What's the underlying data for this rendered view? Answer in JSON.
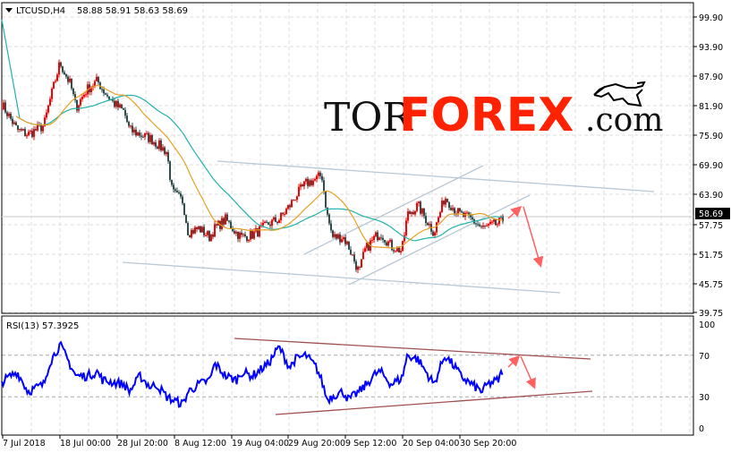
{
  "header": {
    "symbol": "LTCUSD,H4",
    "ohlc": "58.88 58.91 58.63 58.69"
  },
  "logo": {
    "part1": "TOR",
    "part2": "FOREX",
    "part3": ".com"
  },
  "colors": {
    "bull_candle": "#ff0000",
    "bear_candle": "#2f4f4f",
    "ma_fast": "#e6a020",
    "ma_slow": "#20b2aa",
    "rsi_line": "#0000ff",
    "channel_lines": "#b0c4d4",
    "rsi_trend_lines": "#a05050",
    "arrows": "#ff6060",
    "logo_red": "#ff2200"
  },
  "chart_data": [
    {
      "type": "candlestick",
      "title": "LTCUSD,H4",
      "ylim": [
        39.75,
        99.9
      ],
      "y_ticks": [
        "99.90",
        "93.90",
        "87.90",
        "81.90",
        "75.90",
        "69.90",
        "63.90",
        "57.75",
        "51.75",
        "45.75",
        "39.75"
      ],
      "current_price": "58.69",
      "x_ticks": [
        "7 Jul 2018",
        "18 Jul 00:00",
        "28 Jul 20:00",
        "8 Aug 12:00",
        "19 Aug 04:00",
        "29 Aug 20:00",
        "9 Sep 12:00",
        "20 Sep 04:00",
        "30 Sep 20:00"
      ],
      "grid": true,
      "indicators": [
        "moving average (fast)",
        "moving average (slow)"
      ],
      "points": [
        [
          "2018-07-07",
          82.4
        ],
        [
          "2018-07-10",
          76.9
        ],
        [
          "2018-07-12",
          76.0
        ],
        [
          "2018-07-15",
          77.8
        ],
        [
          "2018-07-16",
          82.4
        ],
        [
          "2018-07-18",
          90.6
        ],
        [
          "2018-07-20",
          86.0
        ],
        [
          "2018-07-21",
          81.5
        ],
        [
          "2018-07-23",
          85.1
        ],
        [
          "2018-07-25",
          86.9
        ],
        [
          "2018-07-26",
          85.1
        ],
        [
          "2018-07-28",
          82.4
        ],
        [
          "2018-07-30",
          80.6
        ],
        [
          "2018-07-31",
          76.9
        ],
        [
          "2018-08-02",
          76.0
        ],
        [
          "2018-08-04",
          75.1
        ],
        [
          "2018-08-05",
          74.2
        ],
        [
          "2018-08-07",
          72.4
        ],
        [
          "2018-08-08",
          64.2
        ],
        [
          "2018-08-10",
          62.4
        ],
        [
          "2018-08-11",
          56.0
        ],
        [
          "2018-08-13",
          56.9
        ],
        [
          "2018-08-15",
          55.1
        ],
        [
          "2018-08-16",
          56.9
        ],
        [
          "2018-08-18",
          58.7
        ],
        [
          "2018-08-20",
          56.0
        ],
        [
          "2018-08-21",
          55.1
        ],
        [
          "2018-08-23",
          55.6
        ],
        [
          "2018-08-25",
          56.9
        ],
        [
          "2018-08-26",
          57.8
        ],
        [
          "2018-08-28",
          58.7
        ],
        [
          "2018-08-30",
          61.5
        ],
        [
          "2018-08-31",
          63.3
        ],
        [
          "2018-09-02",
          66.0
        ],
        [
          "2018-09-04",
          66.9
        ],
        [
          "2018-09-05",
          67.8
        ],
        [
          "2018-09-06",
          59.6
        ],
        [
          "2018-09-07",
          55.1
        ],
        [
          "2018-09-09",
          55.1
        ],
        [
          "2018-09-10",
          53.2
        ],
        [
          "2018-09-12",
          47.8
        ],
        [
          "2018-09-13",
          52.3
        ],
        [
          "2018-09-15",
          55.1
        ],
        [
          "2018-09-16",
          56.0
        ],
        [
          "2018-09-18",
          53.2
        ],
        [
          "2018-09-20",
          52.3
        ],
        [
          "2018-09-21",
          59.6
        ],
        [
          "2018-09-23",
          61.5
        ],
        [
          "2018-09-25",
          57.8
        ],
        [
          "2018-09-26",
          56.0
        ],
        [
          "2018-09-28",
          63.3
        ],
        [
          "2018-09-30",
          60.5
        ],
        [
          "2018-10-01",
          59.6
        ],
        [
          "2018-10-03",
          58.7
        ],
        [
          "2018-10-05",
          56.9
        ],
        [
          "2018-10-06",
          57.2
        ],
        [
          "2018-10-08",
          57.8
        ],
        [
          "2018-10-09",
          58.69
        ]
      ]
    },
    {
      "type": "line",
      "title": "RSI(13) 57.3925",
      "label": "RSI(13)",
      "value": "57.3925",
      "ylim": [
        0,
        100
      ],
      "y_ticks": [
        "100",
        "70",
        "30",
        "0"
      ],
      "levels": [
        70,
        30
      ],
      "values": [
        44,
        54,
        35,
        42,
        62,
        80,
        60,
        50,
        50,
        54,
        46,
        44,
        42,
        35,
        50,
        39,
        42,
        30,
        27,
        23,
        35,
        42,
        46,
        62,
        50,
        46,
        54,
        50,
        58,
        62,
        78,
        58,
        66,
        70,
        58,
        45,
        27,
        31,
        35,
        27,
        35,
        40,
        52,
        54,
        42,
        48,
        70,
        66,
        50,
        42,
        70,
        58,
        50,
        42,
        35,
        42,
        46,
        57.4
      ]
    }
  ]
}
